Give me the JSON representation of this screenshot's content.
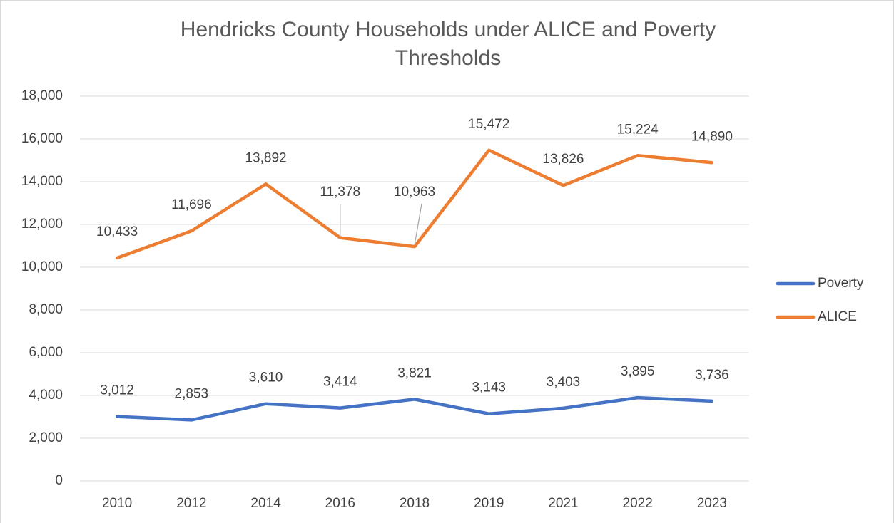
{
  "chart_data": {
    "type": "line",
    "title": "Hendricks County Households under ALICE and Poverty Thresholds",
    "categories": [
      "2010",
      "2012",
      "2014",
      "2016",
      "2018",
      "2019",
      "2021",
      "2022",
      "2023"
    ],
    "series": [
      {
        "name": "Poverty",
        "color": "#4472c4",
        "values": [
          3012,
          2853,
          3610,
          3414,
          3821,
          3143,
          3403,
          3895,
          3736
        ],
        "value_labels": [
          "3,012",
          "2,853",
          "3,610",
          "3,414",
          "3,821",
          "3,143",
          "3,403",
          "3,895",
          "3,736"
        ]
      },
      {
        "name": "ALICE",
        "color": "#ed7d31",
        "values": [
          10433,
          11696,
          13892,
          11378,
          10963,
          15472,
          13826,
          15224,
          14890
        ],
        "value_labels": [
          "10,433",
          "11,696",
          "13,892",
          "11,378",
          "10,963",
          "15,472",
          "13,826",
          "15,224",
          "14,890"
        ]
      }
    ],
    "ylim": [
      0,
      18000
    ],
    "yticks": [
      0,
      {
        "value": 2000,
        "label": "2,000"
      },
      {
        "value": 4000,
        "label": "4,000"
      },
      {
        "value": 6000,
        "label": "6,000"
      },
      {
        "value": 8000,
        "label": "8,000"
      },
      {
        "value": 10000,
        "label": "10,000"
      },
      {
        "value": 12000,
        "label": "12,000"
      },
      {
        "value": 14000,
        "label": "14,000"
      },
      {
        "value": 16000,
        "label": "16,000"
      },
      {
        "value": 18000,
        "label": "18,000"
      }
    ],
    "grid": true,
    "legend": "right"
  }
}
